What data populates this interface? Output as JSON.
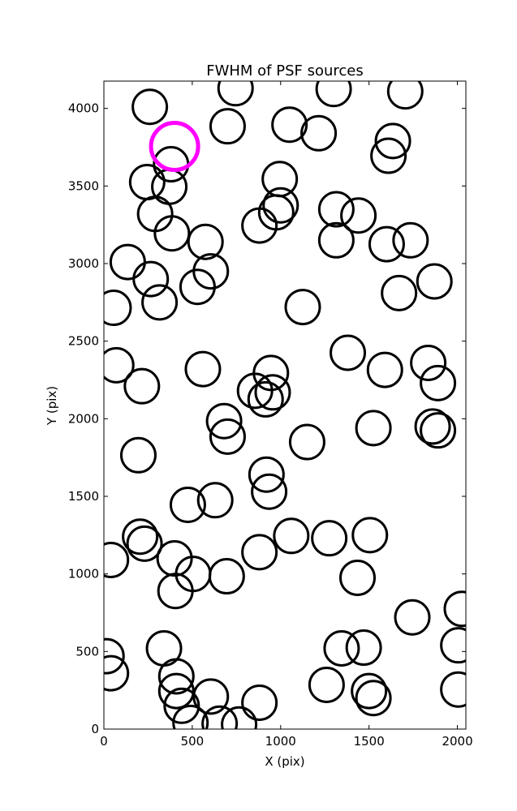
{
  "chart_data": {
    "type": "scatter",
    "title": "FWHM of PSF sources",
    "xlabel": "X (pix)",
    "ylabel": "Y (pix)",
    "xlim": [
      0,
      2048
    ],
    "ylim": [
      0,
      4176
    ],
    "xticks": [
      0,
      500,
      1000,
      1500,
      2000
    ],
    "yticks": [
      0,
      500,
      1000,
      1500,
      2000,
      2500,
      3000,
      3500,
      4000
    ],
    "grid": false,
    "marker": "open circle",
    "marker_color": "#000000",
    "highlight_color": "#ff00ff",
    "sources": [
      {
        "x": 260,
        "y": 4010
      },
      {
        "x": 745,
        "y": 4130
      },
      {
        "x": 1300,
        "y": 4125
      },
      {
        "x": 1705,
        "y": 4110
      },
      {
        "x": 700,
        "y": 3885
      },
      {
        "x": 1050,
        "y": 3895
      },
      {
        "x": 1215,
        "y": 3840
      },
      {
        "x": 1635,
        "y": 3790
      },
      {
        "x": 1610,
        "y": 3695
      },
      {
        "x": 380,
        "y": 3640
      },
      {
        "x": 245,
        "y": 3525
      },
      {
        "x": 370,
        "y": 3495
      },
      {
        "x": 995,
        "y": 3545
      },
      {
        "x": 1000,
        "y": 3375
      },
      {
        "x": 975,
        "y": 3330
      },
      {
        "x": 1315,
        "y": 3350
      },
      {
        "x": 1440,
        "y": 3310
      },
      {
        "x": 290,
        "y": 3320
      },
      {
        "x": 880,
        "y": 3245
      },
      {
        "x": 385,
        "y": 3195
      },
      {
        "x": 575,
        "y": 3140
      },
      {
        "x": 1315,
        "y": 3150
      },
      {
        "x": 1600,
        "y": 3125
      },
      {
        "x": 1735,
        "y": 3150
      },
      {
        "x": 135,
        "y": 3010
      },
      {
        "x": 605,
        "y": 2950
      },
      {
        "x": 265,
        "y": 2900
      },
      {
        "x": 1870,
        "y": 2885
      },
      {
        "x": 530,
        "y": 2850
      },
      {
        "x": 1670,
        "y": 2810
      },
      {
        "x": 315,
        "y": 2750
      },
      {
        "x": 55,
        "y": 2715
      },
      {
        "x": 1125,
        "y": 2720
      },
      {
        "x": 70,
        "y": 2345
      },
      {
        "x": 1380,
        "y": 2425
      },
      {
        "x": 1835,
        "y": 2360
      },
      {
        "x": 560,
        "y": 2320
      },
      {
        "x": 1590,
        "y": 2315
      },
      {
        "x": 945,
        "y": 2295
      },
      {
        "x": 215,
        "y": 2210
      },
      {
        "x": 1890,
        "y": 2230
      },
      {
        "x": 855,
        "y": 2180
      },
      {
        "x": 955,
        "y": 2170
      },
      {
        "x": 915,
        "y": 2125
      },
      {
        "x": 680,
        "y": 1985
      },
      {
        "x": 1525,
        "y": 1940
      },
      {
        "x": 1860,
        "y": 1950
      },
      {
        "x": 1890,
        "y": 1925
      },
      {
        "x": 700,
        "y": 1885
      },
      {
        "x": 1150,
        "y": 1850
      },
      {
        "x": 195,
        "y": 1765
      },
      {
        "x": 920,
        "y": 1640
      },
      {
        "x": 935,
        "y": 1530
      },
      {
        "x": 630,
        "y": 1475
      },
      {
        "x": 475,
        "y": 1445
      },
      {
        "x": 205,
        "y": 1240
      },
      {
        "x": 230,
        "y": 1195
      },
      {
        "x": 1060,
        "y": 1245
      },
      {
        "x": 1275,
        "y": 1230
      },
      {
        "x": 1505,
        "y": 1250
      },
      {
        "x": 40,
        "y": 1090
      },
      {
        "x": 400,
        "y": 1100
      },
      {
        "x": 880,
        "y": 1140
      },
      {
        "x": 505,
        "y": 1000
      },
      {
        "x": 695,
        "y": 985
      },
      {
        "x": 405,
        "y": 890
      },
      {
        "x": 1435,
        "y": 975
      },
      {
        "x": 2025,
        "y": 775
      },
      {
        "x": 1745,
        "y": 720
      },
      {
        "x": 340,
        "y": 520
      },
      {
        "x": 1345,
        "y": 520
      },
      {
        "x": 1470,
        "y": 525
      },
      {
        "x": 2005,
        "y": 540
      },
      {
        "x": 15,
        "y": 470
      },
      {
        "x": 40,
        "y": 360
      },
      {
        "x": 410,
        "y": 340
      },
      {
        "x": 410,
        "y": 245
      },
      {
        "x": 1260,
        "y": 285
      },
      {
        "x": 1500,
        "y": 245
      },
      {
        "x": 1525,
        "y": 200
      },
      {
        "x": 2005,
        "y": 255
      },
      {
        "x": 605,
        "y": 210
      },
      {
        "x": 880,
        "y": 170
      },
      {
        "x": 440,
        "y": 150
      },
      {
        "x": 490,
        "y": 40
      },
      {
        "x": 655,
        "y": 35
      },
      {
        "x": 765,
        "y": 30
      }
    ],
    "highlight": {
      "x": 400,
      "y": 3755
    }
  }
}
